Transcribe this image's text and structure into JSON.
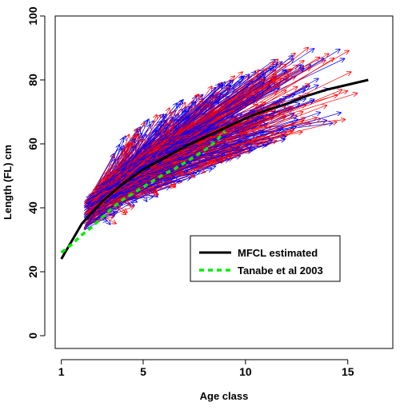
{
  "chart_data": {
    "type": "line",
    "xlabel": "Age class",
    "ylabel": "Length (FL) cm",
    "xlim": [
      0.7,
      17.2
    ],
    "ylim": [
      -4,
      100
    ],
    "xticks": [
      1,
      5,
      10,
      15
    ],
    "yticks": [
      0,
      20,
      40,
      60,
      80,
      100
    ],
    "grid": false,
    "legend_position": "center-right",
    "series": [
      {
        "name": "MFCL estimated",
        "color": "#000000",
        "style": "solid",
        "x": [
          1,
          2,
          3,
          4,
          5,
          6,
          7,
          8,
          9,
          10,
          11,
          12,
          13,
          14,
          15,
          16
        ],
        "y": [
          24,
          35,
          42,
          47.5,
          52,
          55.5,
          59,
          62,
          65,
          68,
          70.5,
          72.5,
          75,
          77,
          78.5,
          80
        ]
      },
      {
        "name": "Tanabe et al 2003",
        "color": "#00ee00",
        "style": "dashed",
        "x": [
          1,
          1.5,
          2,
          2.5,
          3,
          3.5,
          4,
          4.5,
          5,
          5.5,
          6,
          6.5,
          7,
          7.5,
          8,
          8.5,
          9
        ],
        "y": [
          26,
          28.5,
          31.5,
          34,
          37,
          40,
          42.5,
          44.5,
          46.5,
          48.5,
          50.5,
          52,
          54,
          56,
          58,
          60.5,
          64
        ]
      }
    ],
    "tag_arrow_colors": [
      "#ff0000",
      "#0000ff"
    ],
    "tag_arrows_origin_x_range": [
      2.1,
      6
    ],
    "tag_arrows_length_range": [
      29,
      97
    ]
  }
}
